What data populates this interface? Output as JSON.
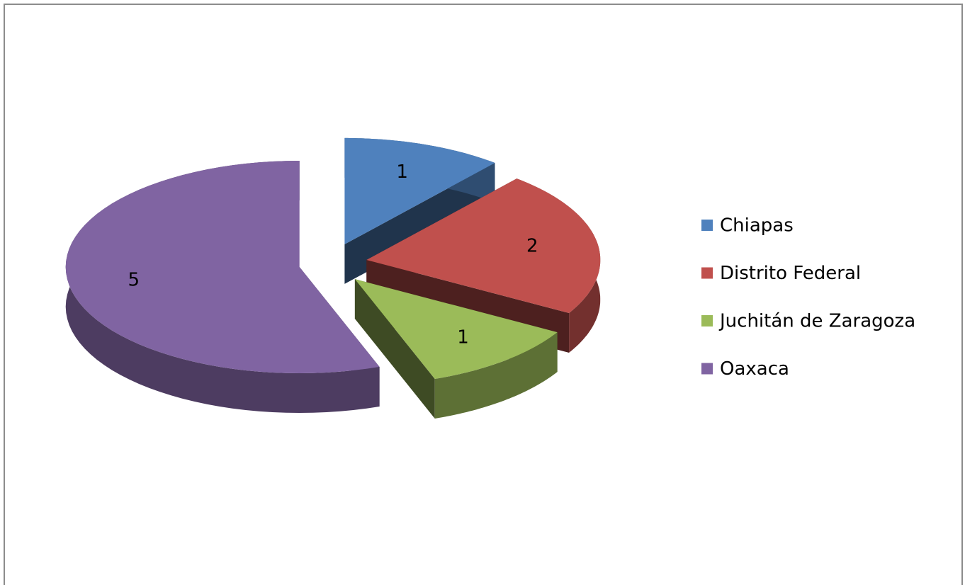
{
  "chart_data": {
    "type": "pie3d",
    "categories": [
      "Chiapas",
      "Distrito Federal",
      "Juchitán de Zaragoza",
      "Oaxaca"
    ],
    "values": [
      1,
      2,
      1,
      5
    ],
    "colors": [
      "#4f81bd",
      "#c0504d",
      "#9bbb59",
      "#8064a2"
    ],
    "legend": "right"
  }
}
